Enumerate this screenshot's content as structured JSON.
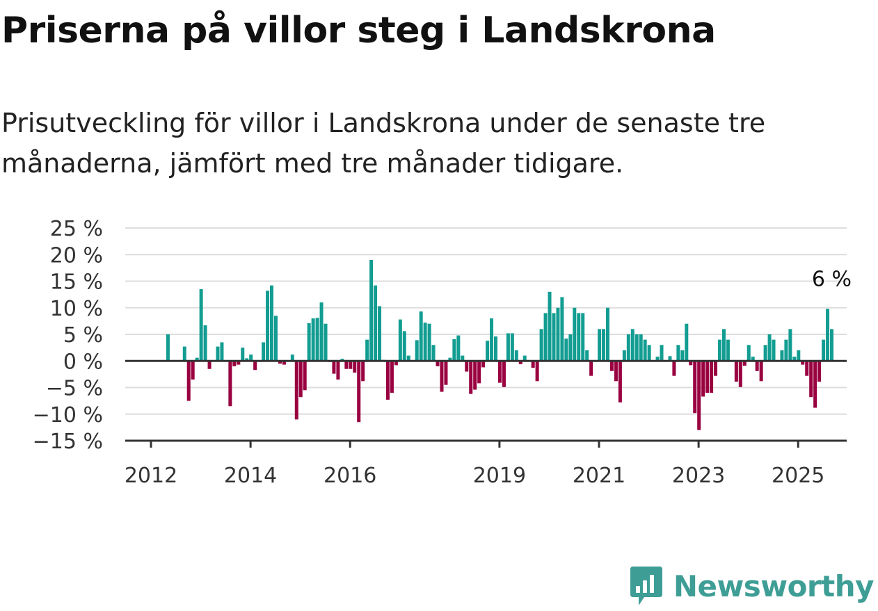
{
  "title": "Priserna på villor steg i Landskrona",
  "subtitle": "Prisutveckling för villor i Landskrona under de senaste tre månaderna, jämfört med tre månader tidigare.",
  "brand": {
    "name": "Newsworthy",
    "logo_icon": "bar-chart-logo-icon"
  },
  "colors": {
    "positive": "#139d92",
    "negative": "#990040",
    "grid": "#dddddd",
    "axis": "#333333"
  },
  "chart_data": {
    "type": "bar",
    "x_unit": "month",
    "start_month": "2012-01",
    "unit": "%",
    "ylim": [
      -15,
      25
    ],
    "yticks": [
      25,
      20,
      15,
      10,
      5,
      0,
      -5,
      -10,
      -15
    ],
    "ytick_labels": [
      "25 %",
      "20 %",
      "15 %",
      "10 %",
      "5 %",
      "0 %",
      "−5 %",
      "−10 %",
      "−15 %"
    ],
    "xticks": [
      "2012",
      "2014",
      "2016",
      "2019",
      "2021",
      "2023",
      "2025"
    ],
    "grid": true,
    "annotation": {
      "text": "6 %",
      "target": "last"
    },
    "values": [
      0,
      0,
      5,
      0,
      0,
      0,
      2.7,
      -7.5,
      -3.5,
      0.6,
      13.5,
      6.7,
      -1.5,
      0,
      2.7,
      3.5,
      0,
      -8.5,
      -1,
      -0.7,
      2.5,
      0.5,
      1.2,
      -1.7,
      0,
      3.5,
      13.2,
      14.2,
      8.5,
      -0.5,
      -0.7,
      0,
      1.2,
      -11,
      -6.8,
      -5.5,
      7.1,
      8,
      8.1,
      11,
      7,
      -0.2,
      -2.4,
      -3.5,
      0.4,
      -1.5,
      -1.5,
      -2.2,
      -11.5,
      -3.8,
      4,
      19,
      14.2,
      10.3,
      0.2,
      -7.3,
      -6,
      -0.8,
      7.8,
      5.6,
      1,
      0,
      3.9,
      9.3,
      7.2,
      7,
      3,
      -1,
      -5.8,
      -4.5,
      0.6,
      4.1,
      4.8,
      1,
      -2,
      -6.2,
      -5.4,
      -4.2,
      -1.2,
      3.8,
      8,
      4.6,
      -4.1,
      -4.9,
      5.2,
      5.2,
      2,
      -0.6,
      1,
      0,
      -1.3,
      -3.8,
      6,
      9,
      13,
      9,
      10,
      12,
      4.2,
      5,
      10,
      9,
      9,
      2,
      -2.8,
      0,
      6,
      6,
      10,
      -1.9,
      -3.8,
      -7.8,
      2,
      5,
      6,
      5,
      5,
      4,
      3,
      0,
      0.8,
      3,
      0,
      0.9,
      -2.8,
      3,
      2,
      7,
      -0.8,
      -9.8,
      -13,
      -6.7,
      -6,
      -6,
      -2.8,
      4,
      6,
      4,
      0,
      -3.9,
      -4.9,
      -0.9,
      3,
      0.8,
      -1.9,
      -3.8,
      3,
      5,
      4,
      0,
      2,
      4,
      6,
      0.8,
      2,
      -0.7,
      -2.8,
      -6.8,
      -8.8,
      -3.9,
      4,
      9.8,
      6
    ]
  }
}
